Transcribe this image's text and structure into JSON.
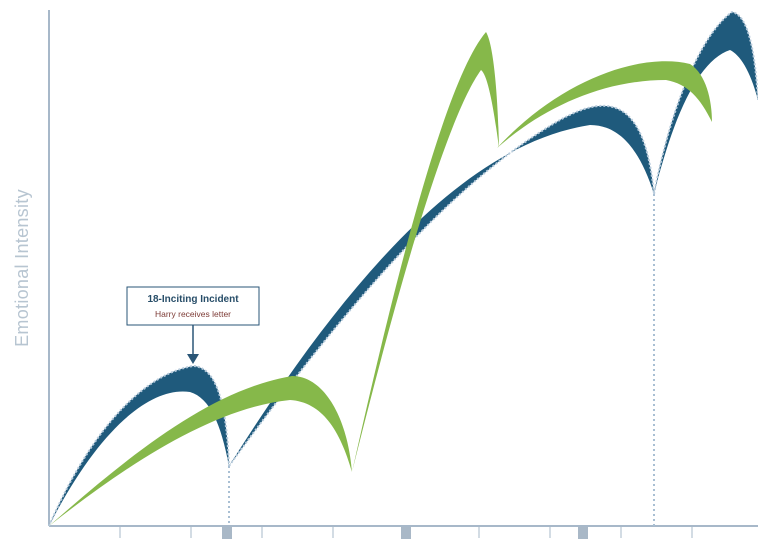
{
  "y_axis_label": "Emotional Intensity",
  "annotation": {
    "title": "18-Inciting Incident",
    "subtitle": "Harry receives letter"
  },
  "colors": {
    "blue_arc": "#1f5a7c",
    "green_arc": "#86b84a",
    "axis": "#9fb2c5",
    "dotted_line": "#a9bfd3",
    "marker": "#a9b8c7",
    "annotation_border": "#2a5677"
  }
}
